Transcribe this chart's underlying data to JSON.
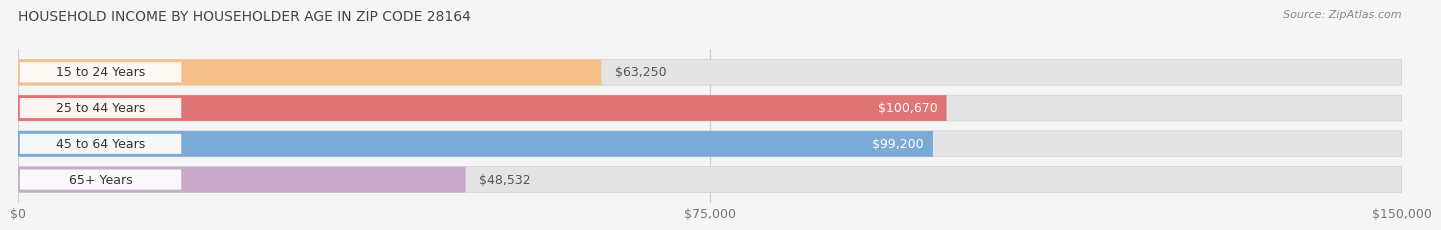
{
  "title": "HOUSEHOLD INCOME BY HOUSEHOLDER AGE IN ZIP CODE 28164",
  "source": "Source: ZipAtlas.com",
  "categories": [
    "15 to 24 Years",
    "25 to 44 Years",
    "45 to 64 Years",
    "65+ Years"
  ],
  "values": [
    63250,
    100670,
    99200,
    48532
  ],
  "bar_colors": [
    "#F5C08A",
    "#E07575",
    "#7BAAD4",
    "#C9AACB"
  ],
  "label_colors": [
    "#555555",
    "#ffffff",
    "#ffffff",
    "#555555"
  ],
  "value_inside": [
    false,
    true,
    true,
    false
  ],
  "xlim": [
    0,
    150000
  ],
  "xticks": [
    0,
    75000,
    150000
  ],
  "xtick_labels": [
    "$0",
    "$75,000",
    "$150,000"
  ],
  "background_color": "#f5f5f5",
  "bar_bg_color": "#e4e4e4",
  "title_fontsize": 10,
  "source_fontsize": 8,
  "label_fontsize": 9,
  "tick_fontsize": 9,
  "category_fontsize": 9
}
